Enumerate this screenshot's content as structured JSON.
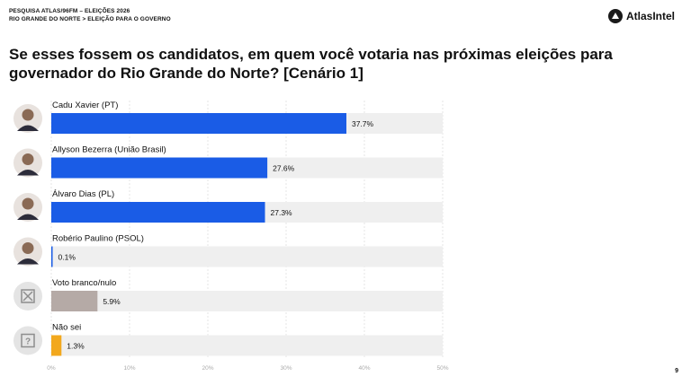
{
  "header": {
    "line1": "PESQUISA ATLAS/96FM – ELEIÇÕES 2026",
    "line2": "RIO GRANDE DO NORTE > ELEIÇÃO PARA O GOVERNO",
    "brand": "AtlasIntel"
  },
  "page_number": "9",
  "colors": {
    "blue": "#1a5ce6",
    "gray": "#b5aaa6",
    "orange": "#f2a81d",
    "track": "#efefef"
  },
  "chart_data": {
    "type": "bar",
    "orientation": "horizontal",
    "title": "Se esses fossem os candidatos, em quem você votaria nas próximas eleições para governador do Rio Grande do Norte? [Cenário 1]",
    "categories": [
      "Cadu Xavier (PT)",
      "Allyson Bezerra (União Brasil)",
      "Álvaro Dias (PL)",
      "Robério Paulino (PSOL)",
      "Voto branco/nulo",
      "Não sei"
    ],
    "values": [
      37.7,
      27.6,
      27.3,
      0.1,
      5.9,
      1.3
    ],
    "value_labels": [
      "37.7%",
      "27.6%",
      "27.3%",
      "0.1%",
      "5.9%",
      "1.3%"
    ],
    "bar_colors": [
      "#1a5ce6",
      "#1a5ce6",
      "#1a5ce6",
      "#1a5ce6",
      "#b5aaa6",
      "#f2a81d"
    ],
    "icons": [
      "candidate-photo",
      "candidate-photo",
      "candidate-photo",
      "candidate-photo",
      "null-vote-x-icon",
      "unknown-question-icon"
    ],
    "xlim": [
      0,
      50
    ],
    "xticks": [
      "0%",
      "10%",
      "20%",
      "30%",
      "40%",
      "50%"
    ],
    "grid": true
  }
}
